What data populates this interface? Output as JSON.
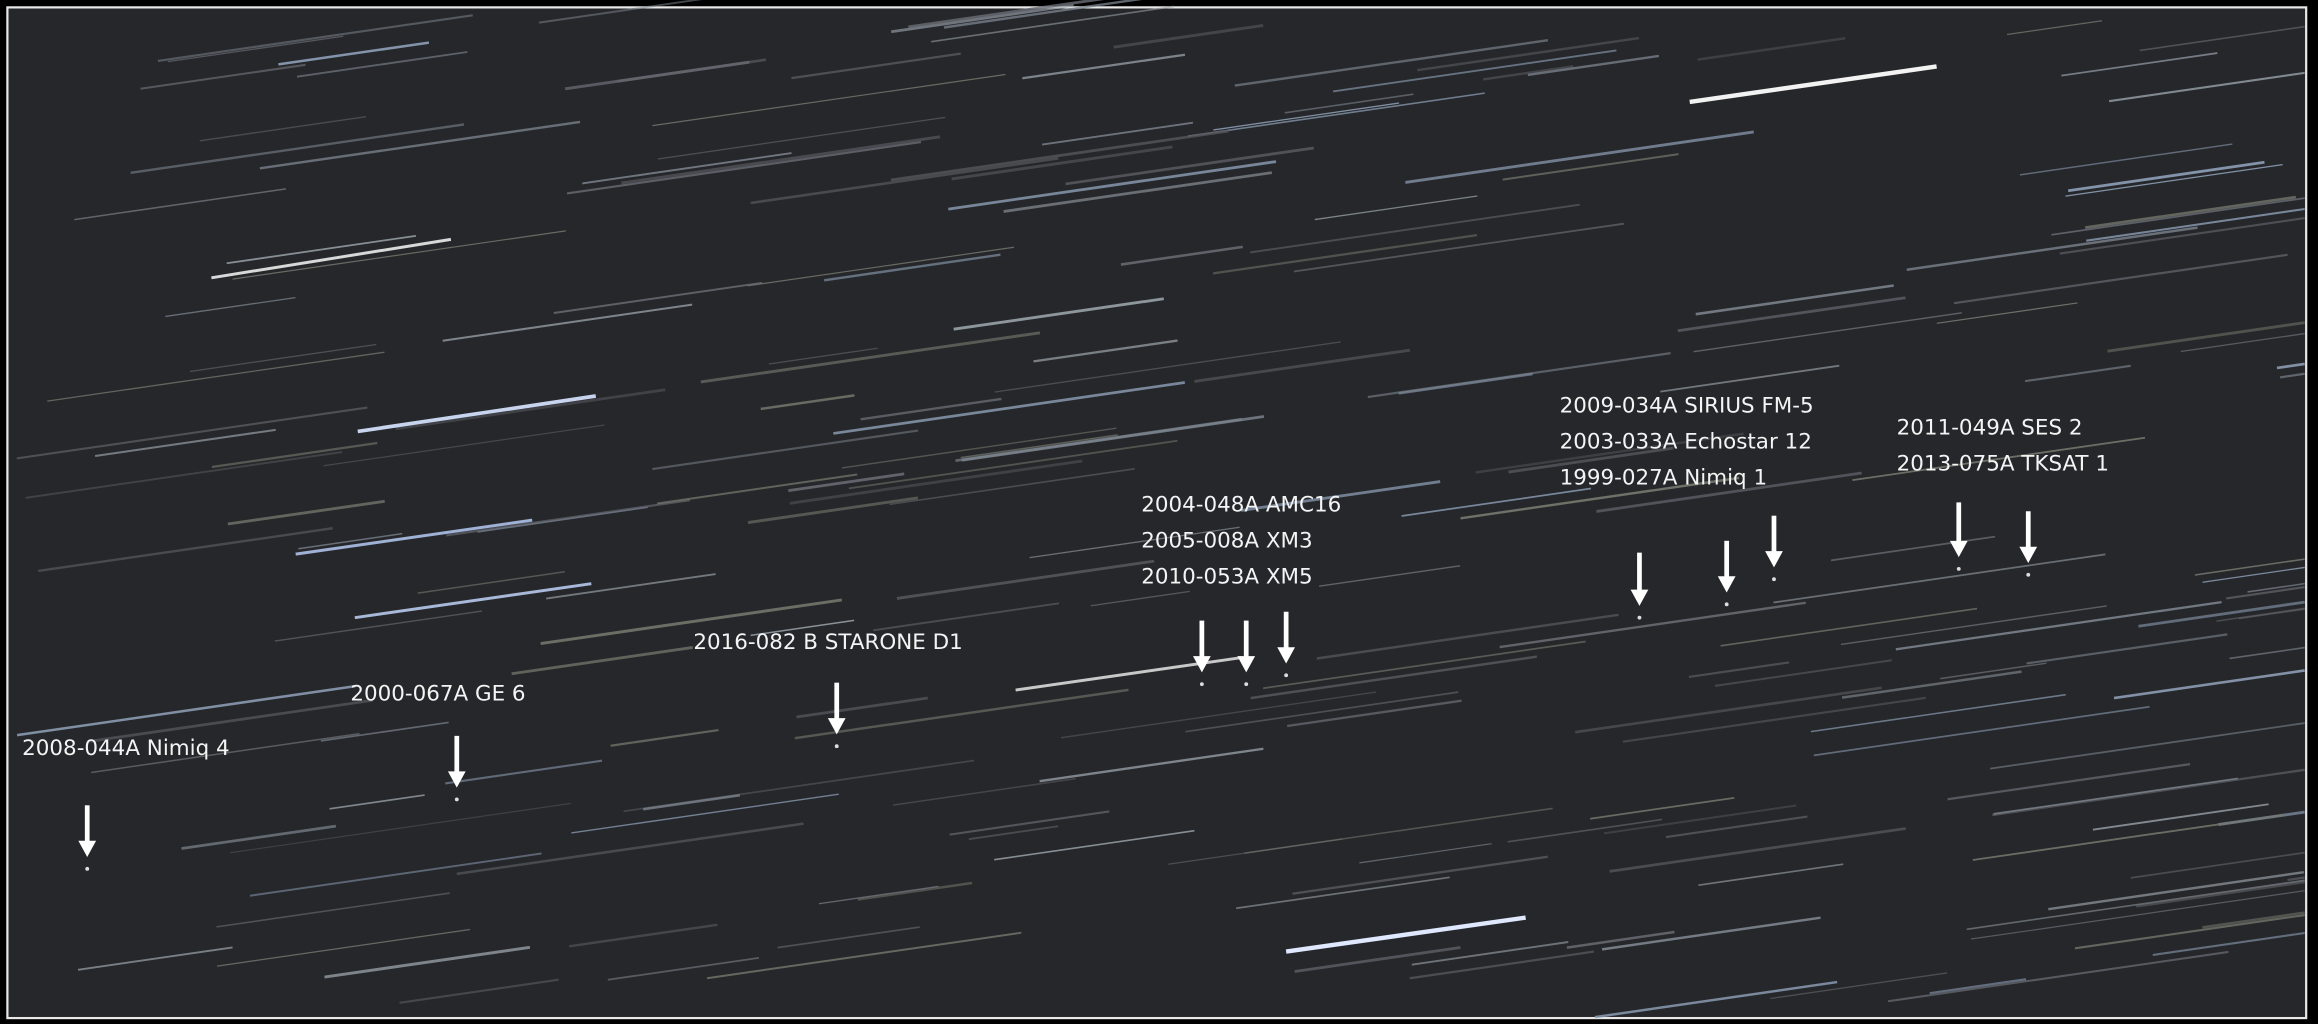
{
  "labels": [
    {
      "lines": [
        "2008-044A Nimiq 4"
      ]
    },
    {
      "lines": [
        "2000-067A GE 6"
      ]
    },
    {
      "lines": [
        "2016-082 B STARONE D1"
      ]
    },
    {
      "lines": [
        "2004-048A AMC16",
        "2005-008A XM3",
        "2010-053A XM5"
      ]
    },
    {
      "lines": [
        "2009-034A SIRIUS FM-5",
        "2003-033A Echostar 12",
        "1999-027A Nimiq 1"
      ]
    },
    {
      "lines": [
        "2011-049A SES 2",
        "2013-075A TKSAT 1"
      ]
    }
  ]
}
